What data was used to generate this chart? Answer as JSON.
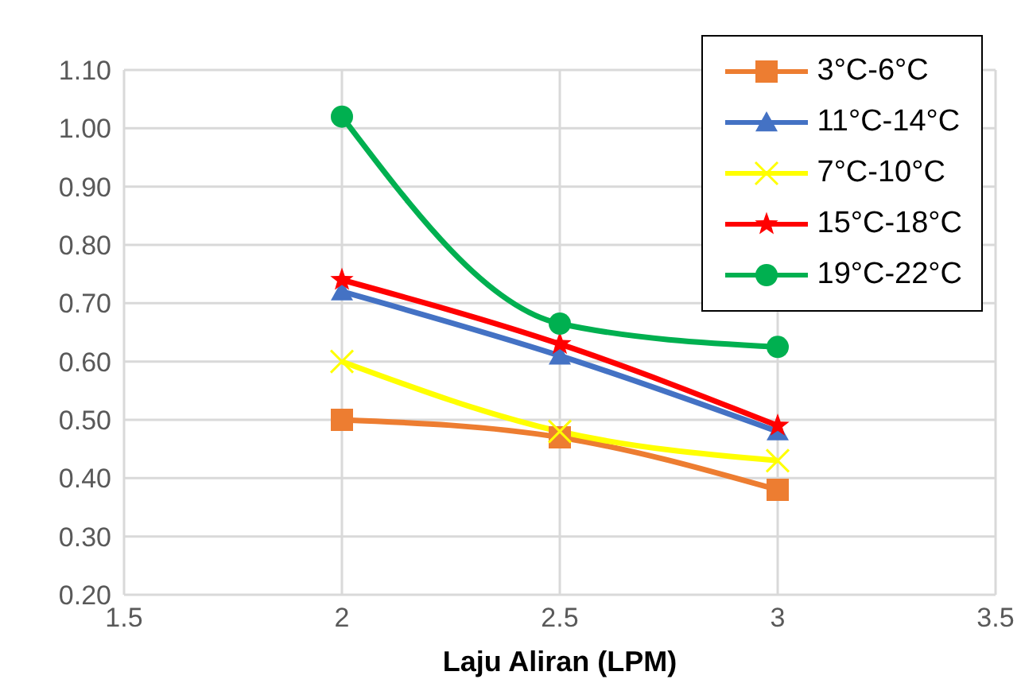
{
  "chart_data": {
    "type": "line",
    "xlabel": "Laju Aliran (LPM)",
    "x": [
      2,
      2.5,
      3
    ],
    "series": [
      {
        "name": "3°C-6°C",
        "color": "#ed7d31",
        "marker": "square",
        "values": [
          0.5,
          0.47,
          0.38
        ]
      },
      {
        "name": "11°C-14°C",
        "color": "#4472c4",
        "marker": "triangle",
        "values": [
          0.72,
          0.61,
          0.48
        ]
      },
      {
        "name": "7°C-10°C",
        "color": "#ffff00",
        "marker": "cross",
        "values": [
          0.6,
          0.48,
          0.43
        ]
      },
      {
        "name": "15°C-18°C",
        "color": "#ff0000",
        "marker": "star",
        "values": [
          0.74,
          0.63,
          0.49
        ]
      },
      {
        "name": "19°C-22°C",
        "color": "#00b050",
        "marker": "circle",
        "values": [
          1.02,
          0.665,
          0.625
        ]
      }
    ],
    "xlim": [
      1.5,
      3.5
    ],
    "xticks": [
      1.5,
      2,
      2.5,
      3,
      3.5
    ],
    "ylim": [
      0.2,
      1.1
    ],
    "yticks": [
      {
        "value": 0.2,
        "label": "0.20"
      },
      {
        "value": 0.3,
        "label": "0.30"
      },
      {
        "value": 0.4,
        "label": "0.40"
      },
      {
        "value": 0.5,
        "label": "0.50"
      },
      {
        "value": 0.6,
        "label": "0.60"
      },
      {
        "value": 0.7,
        "label": "0.70"
      },
      {
        "value": 0.8,
        "label": "0.80"
      },
      {
        "value": 0.9,
        "label": "0.90"
      },
      {
        "value": 1.0,
        "label": "1.00"
      },
      {
        "value": 1.1,
        "label": "1.10"
      }
    ],
    "grid": true,
    "legend": "top right"
  }
}
